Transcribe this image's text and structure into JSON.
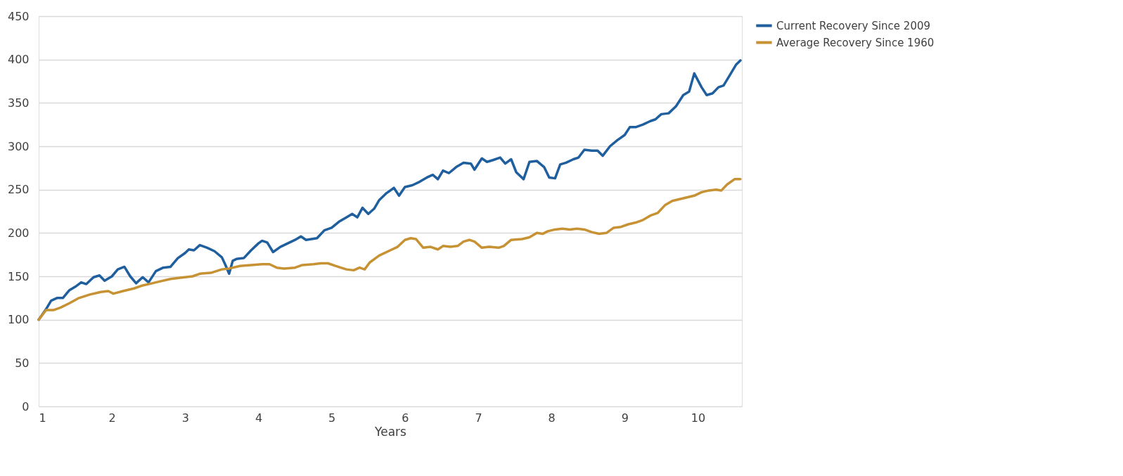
{
  "chart_data": {
    "type": "line",
    "xlabel": "Years",
    "xlim": [
      1,
      10.6
    ],
    "xticks": [
      1,
      2,
      3,
      4,
      5,
      6,
      7,
      8,
      9,
      10
    ],
    "ylim": [
      0,
      450
    ],
    "yticks": [
      0,
      50,
      100,
      150,
      200,
      250,
      300,
      350,
      400,
      450
    ],
    "grid": "y",
    "legend": "right",
    "marker": "none",
    "line_style": "solid",
    "series": [
      {
        "name": "Current Recovery Since 2009",
        "color": "#1f5f9e",
        "x": [
          1.0,
          1.1,
          1.17,
          1.25,
          1.33,
          1.42,
          1.5,
          1.58,
          1.65,
          1.75,
          1.83,
          1.9,
          2.0,
          2.08,
          2.17,
          2.25,
          2.33,
          2.42,
          2.5,
          2.6,
          2.7,
          2.8,
          2.9,
          3.0,
          3.05,
          3.12,
          3.2,
          3.3,
          3.4,
          3.5,
          3.55,
          3.6,
          3.65,
          3.7,
          3.8,
          3.9,
          4.0,
          4.05,
          4.12,
          4.2,
          4.3,
          4.4,
          4.5,
          4.58,
          4.65,
          4.8,
          4.9,
          5.0,
          5.1,
          5.2,
          5.28,
          5.35,
          5.42,
          5.5,
          5.58,
          5.65,
          5.75,
          5.85,
          5.92,
          6.0,
          6.1,
          6.2,
          6.3,
          6.38,
          6.45,
          6.52,
          6.6,
          6.7,
          6.8,
          6.9,
          6.95,
          7.05,
          7.12,
          7.2,
          7.3,
          7.37,
          7.45,
          7.52,
          7.62,
          7.7,
          7.8,
          7.9,
          7.97,
          8.05,
          8.12,
          8.2,
          8.3,
          8.37,
          8.45,
          8.55,
          8.63,
          8.7,
          8.8,
          8.9,
          9.0,
          9.07,
          9.15,
          9.25,
          9.35,
          9.42,
          9.5,
          9.6,
          9.7,
          9.8,
          9.88,
          9.95,
          10.05,
          10.12,
          10.2,
          10.28,
          10.35,
          10.45,
          10.52,
          10.58
        ],
        "values": [
          100,
          112,
          122,
          125,
          125,
          134,
          138,
          143,
          141,
          149,
          151,
          145,
          150,
          158,
          161,
          150,
          142,
          149,
          143,
          156,
          160,
          161,
          171,
          177,
          181,
          180,
          186,
          183,
          179,
          172,
          163,
          153,
          168,
          170,
          171,
          180,
          188,
          191,
          189,
          178,
          184,
          188,
          192,
          196,
          192,
          194,
          203,
          206,
          213,
          218,
          222,
          218,
          229,
          222,
          228,
          238,
          246,
          252,
          243,
          253,
          255,
          259,
          264,
          267,
          262,
          272,
          269,
          276,
          281,
          280,
          273,
          286,
          282,
          284,
          287,
          280,
          285,
          270,
          262,
          282,
          283,
          276,
          264,
          263,
          279,
          281,
          285,
          287,
          296,
          295,
          295,
          289,
          300,
          307,
          313,
          322,
          322,
          325,
          329,
          331,
          337,
          338,
          346,
          359,
          363,
          384,
          368,
          359,
          361,
          368,
          370,
          384,
          394,
          399
        ]
      },
      {
        "name": "Average Recovery Since 1960",
        "color": "#c69233",
        "x": [
          1.0,
          1.1,
          1.2,
          1.3,
          1.42,
          1.55,
          1.7,
          1.85,
          1.95,
          2.02,
          2.15,
          2.3,
          2.4,
          2.5,
          2.65,
          2.8,
          2.9,
          3.0,
          3.1,
          3.2,
          3.35,
          3.5,
          3.6,
          3.75,
          3.9,
          4.05,
          4.15,
          4.25,
          4.35,
          4.5,
          4.6,
          4.75,
          4.85,
          4.95,
          5.05,
          5.2,
          5.3,
          5.38,
          5.45,
          5.52,
          5.65,
          5.8,
          5.9,
          6.0,
          6.08,
          6.15,
          6.25,
          6.35,
          6.45,
          6.52,
          6.62,
          6.72,
          6.8,
          6.88,
          6.95,
          7.05,
          7.15,
          7.28,
          7.35,
          7.45,
          7.6,
          7.7,
          7.8,
          7.88,
          7.95,
          8.05,
          8.15,
          8.25,
          8.35,
          8.45,
          8.55,
          8.65,
          8.75,
          8.85,
          8.95,
          9.05,
          9.15,
          9.25,
          9.35,
          9.45,
          9.55,
          9.65,
          9.75,
          9.85,
          9.95,
          10.05,
          10.15,
          10.25,
          10.32,
          10.4,
          10.5,
          10.58
        ],
        "values": [
          100,
          111,
          111,
          114,
          119,
          125,
          129,
          132,
          133,
          130,
          133,
          136,
          139,
          141,
          144,
          147,
          148,
          149,
          150,
          153,
          154,
          158,
          159,
          162,
          163,
          164,
          164,
          160,
          159,
          160,
          163,
          164,
          165,
          165,
          162,
          158,
          157,
          160,
          158,
          166,
          174,
          180,
          184,
          192,
          194,
          193,
          183,
          184,
          181,
          185,
          184,
          185,
          190,
          192,
          190,
          183,
          184,
          183,
          185,
          192,
          193,
          195,
          200,
          199,
          202,
          204,
          205,
          204,
          205,
          204,
          201,
          199,
          200,
          206,
          207,
          210,
          212,
          215,
          220,
          223,
          232,
          237,
          239,
          241,
          243,
          247,
          249,
          250,
          249,
          256,
          262,
          262
        ]
      }
    ]
  }
}
